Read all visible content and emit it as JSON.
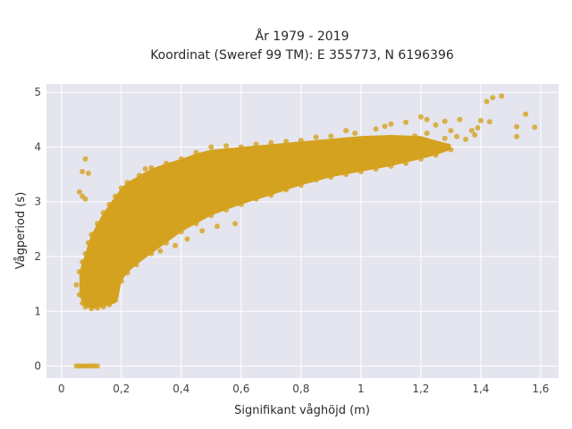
{
  "chart_data": {
    "type": "scatter",
    "title_lines": [
      "År 1979 - 2019",
      "Koordinat (Sweref 99 TM): E 355773, N 6196396"
    ],
    "xlabel": "Signifikant våghöjd (m)",
    "ylabel": "Vågperiod (s)",
    "xlim": [
      -0.05,
      1.66
    ],
    "ylim": [
      -0.22,
      5.15
    ],
    "x_ticks": [
      {
        "value": 0,
        "label": "0"
      },
      {
        "value": 0.2,
        "label": "0,2"
      },
      {
        "value": 0.4,
        "label": "0,4"
      },
      {
        "value": 0.6,
        "label": "0,6"
      },
      {
        "value": 0.8,
        "label": "0,8"
      },
      {
        "value": 1.0,
        "label": "1"
      },
      {
        "value": 1.2,
        "label": "1,2"
      },
      {
        "value": 1.4,
        "label": "1,4"
      },
      {
        "value": 1.6,
        "label": "1,6"
      }
    ],
    "y_ticks": [
      {
        "value": 0,
        "label": "0"
      },
      {
        "value": 1,
        "label": "1"
      },
      {
        "value": 2,
        "label": "2"
      },
      {
        "value": 3,
        "label": "3"
      },
      {
        "value": 4,
        "label": "4"
      },
      {
        "value": 5,
        "label": "5"
      }
    ],
    "grid": true,
    "marker_color": "#D4A21E",
    "plot_background": "#E5E5EF",
    "points": [
      [
        0.05,
        0.0
      ],
      [
        0.06,
        0.0
      ],
      [
        0.07,
        0.0
      ],
      [
        0.08,
        0.0
      ],
      [
        0.09,
        0.0
      ],
      [
        0.1,
        0.0
      ],
      [
        0.11,
        0.0
      ],
      [
        0.12,
        0.0
      ],
      [
        0.08,
        3.78
      ],
      [
        0.07,
        3.55
      ],
      [
        0.09,
        3.52
      ],
      [
        0.06,
        3.18
      ],
      [
        0.07,
        3.1
      ],
      [
        0.08,
        3.05
      ],
      [
        0.05,
        1.48
      ],
      [
        1.47,
        4.93
      ],
      [
        1.44,
        4.9
      ],
      [
        1.42,
        4.83
      ],
      [
        1.4,
        4.48
      ],
      [
        1.43,
        4.46
      ],
      [
        1.39,
        4.35
      ],
      [
        1.37,
        4.3
      ],
      [
        1.38,
        4.22
      ],
      [
        1.55,
        4.6
      ],
      [
        1.58,
        4.36
      ],
      [
        1.52,
        4.37
      ],
      [
        1.52,
        4.19
      ],
      [
        1.32,
        4.19
      ],
      [
        1.3,
        4.3
      ],
      [
        1.25,
        4.4
      ],
      [
        1.28,
        4.47
      ],
      [
        1.33,
        4.5
      ],
      [
        1.2,
        4.55
      ],
      [
        1.22,
        4.5
      ],
      [
        1.15,
        4.45
      ],
      [
        1.1,
        4.42
      ],
      [
        1.08,
        4.38
      ],
      [
        1.05,
        4.33
      ],
      [
        1.25,
        4.06
      ],
      [
        1.28,
        4.16
      ],
      [
        1.22,
        4.25
      ],
      [
        1.18,
        4.2
      ],
      [
        1.35,
        4.14
      ],
      [
        1.27,
        4.02
      ],
      [
        1.23,
        4.0
      ],
      [
        1.2,
        3.98
      ],
      [
        0.95,
        4.3
      ],
      [
        0.98,
        4.25
      ],
      [
        0.9,
        4.2
      ],
      [
        0.85,
        4.18
      ],
      [
        0.8,
        4.12
      ],
      [
        0.75,
        4.1
      ],
      [
        0.7,
        4.08
      ],
      [
        0.65,
        4.05
      ],
      [
        0.6,
        4.0
      ],
      [
        0.55,
        4.02
      ],
      [
        0.5,
        4.0
      ],
      [
        0.45,
        3.9
      ],
      [
        0.4,
        3.78
      ],
      [
        0.35,
        3.7
      ],
      [
        0.3,
        3.62
      ],
      [
        0.28,
        3.6
      ],
      [
        0.32,
        3.55
      ],
      [
        0.26,
        3.48
      ],
      [
        0.22,
        3.35
      ],
      [
        0.2,
        3.25
      ],
      [
        0.18,
        3.1
      ],
      [
        0.16,
        2.95
      ],
      [
        0.14,
        2.8
      ],
      [
        0.12,
        2.6
      ],
      [
        0.1,
        2.4
      ],
      [
        0.09,
        2.25
      ],
      [
        0.08,
        2.05
      ],
      [
        0.07,
        1.9
      ],
      [
        0.06,
        1.72
      ],
      [
        0.06,
        1.3
      ],
      [
        0.07,
        1.15
      ],
      [
        0.08,
        1.08
      ],
      [
        0.1,
        1.05
      ],
      [
        0.12,
        1.06
      ],
      [
        0.14,
        1.08
      ],
      [
        0.16,
        1.12
      ],
      [
        0.18,
        1.2
      ],
      [
        0.2,
        1.55
      ],
      [
        0.22,
        1.7
      ],
      [
        0.25,
        1.85
      ],
      [
        0.3,
        2.05
      ],
      [
        0.35,
        2.25
      ],
      [
        0.4,
        2.45
      ],
      [
        0.45,
        2.6
      ],
      [
        0.5,
        2.75
      ],
      [
        0.55,
        2.85
      ],
      [
        0.6,
        2.95
      ],
      [
        0.65,
        3.05
      ],
      [
        0.7,
        3.12
      ],
      [
        0.75,
        3.22
      ],
      [
        0.8,
        3.3
      ],
      [
        0.85,
        3.4
      ],
      [
        0.9,
        3.45
      ],
      [
        0.95,
        3.5
      ],
      [
        1.0,
        3.55
      ],
      [
        1.05,
        3.6
      ],
      [
        1.1,
        3.65
      ],
      [
        1.15,
        3.7
      ],
      [
        1.2,
        3.78
      ],
      [
        1.25,
        3.85
      ],
      [
        1.3,
        3.95
      ],
      [
        0.58,
        2.6
      ],
      [
        0.52,
        2.55
      ],
      [
        0.47,
        2.47
      ],
      [
        0.42,
        2.32
      ],
      [
        0.38,
        2.2
      ],
      [
        0.33,
        2.1
      ]
    ]
  }
}
